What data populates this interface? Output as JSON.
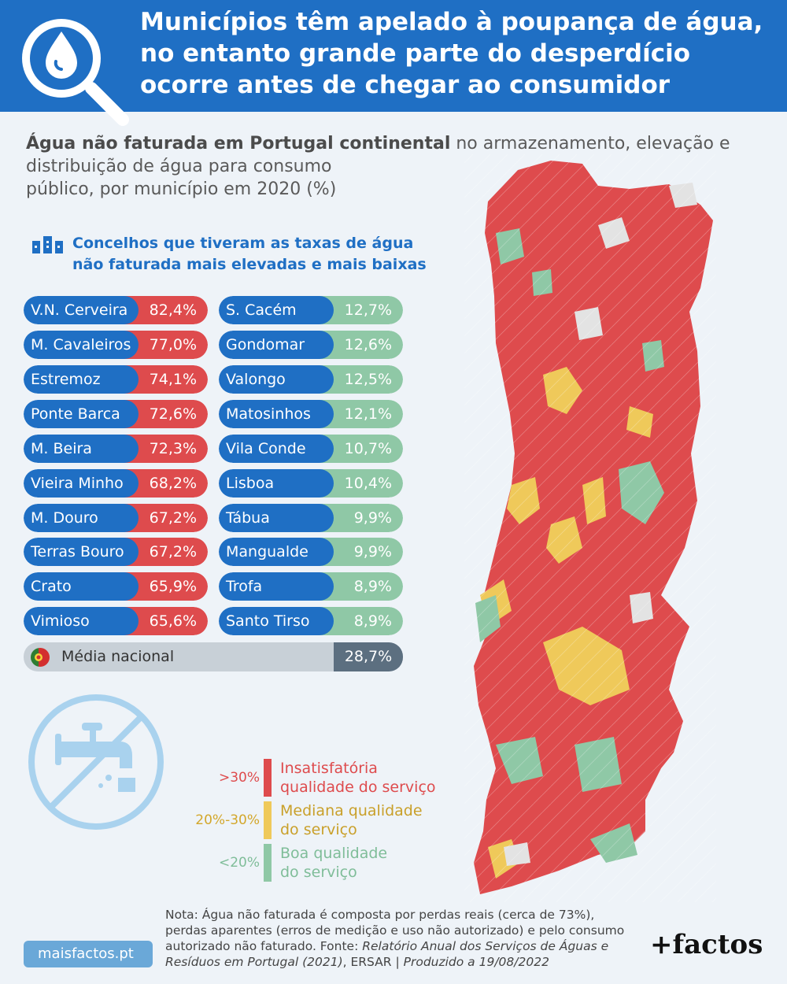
{
  "header": {
    "title": "Municípios têm apelado à poupança de água, no entanto grande parte do desperdício ocorre antes de chegar ao consumidor"
  },
  "subtitle": {
    "bold": "Água não faturada em Portugal continental",
    "rest_line1": " no armazenamento, elevação e",
    "rest_line2": "distribuição de água para consumo",
    "rest_line3": "público, por município em 2020 (%)"
  },
  "ranking": {
    "heading_line1": "Concelhos que tiveram as taxas de água",
    "heading_line2": "não faturada mais elevadas e mais baixas",
    "highest": [
      {
        "name": "V.N. Cerveira",
        "value": "82,4%"
      },
      {
        "name": "M. Cavaleiros",
        "value": "77,0%"
      },
      {
        "name": "Estremoz",
        "value": "74,1%"
      },
      {
        "name": "Ponte Barca",
        "value": "72,6%"
      },
      {
        "name": "M. Beira",
        "value": "72,3%"
      },
      {
        "name": "Vieira Minho",
        "value": "68,2%"
      },
      {
        "name": "M. Douro",
        "value": "67,2%"
      },
      {
        "name": "Terras Bouro",
        "value": "67,2%"
      },
      {
        "name": "Crato",
        "value": "65,9%"
      },
      {
        "name": "Vimioso",
        "value": "65,6%"
      }
    ],
    "lowest": [
      {
        "name": "S. Cacém",
        "value": "12,7%"
      },
      {
        "name": "Gondomar",
        "value": "12,6%"
      },
      {
        "name": "Valongo",
        "value": "12,5%"
      },
      {
        "name": "Matosinhos",
        "value": "12,1%"
      },
      {
        "name": "Vila Conde",
        "value": "10,7%"
      },
      {
        "name": "Lisboa",
        "value": "10,4%"
      },
      {
        "name": "Tábua",
        "value": "9,9%"
      },
      {
        "name": "Mangualde",
        "value": "9,9%"
      },
      {
        "name": "Trofa",
        "value": "8,9%"
      },
      {
        "name": "Santo Tirso",
        "value": "8,9%"
      }
    ],
    "national": {
      "label": "Média nacional",
      "value": "28,7%"
    }
  },
  "legend": [
    {
      "range": ">30%",
      "line1": "Insatisfatória",
      "line2": "qualidade do serviço",
      "color": "#de4b4d"
    },
    {
      "range": "20%-30%",
      "line1": "Mediana qualidade",
      "line2": "do serviço",
      "color": "#efc95a"
    },
    {
      "range": "<20%",
      "line1": "Boa qualidade",
      "line2": "do serviço",
      "color": "#8fc8a6"
    }
  ],
  "colors": {
    "header": "#1f6fc4",
    "high": "#de4b4d",
    "medium": "#efc95a",
    "low": "#8fc8a6",
    "no_data": "#e3e3e3"
  },
  "note": {
    "part1": "Nota: Água não faturada é composta por perdas reais (cerca de 73%), perdas aparentes (erros de medição e uso não autorizado) e pelo consumo autorizado não faturado. Fonte: ",
    "source": "Relatório Anual dos Serviços de Águas e Resíduos em Portugal (2021)",
    "part2": ", ERSAR | ",
    "produced": "Produzido a 19/08/2022"
  },
  "footer": {
    "site": "maisfactos.pt",
    "brand": "+factos"
  },
  "icons": [
    "water-drop-search-icon",
    "chart-icon",
    "no-tap-icon",
    "portugal-flag-icon"
  ]
}
